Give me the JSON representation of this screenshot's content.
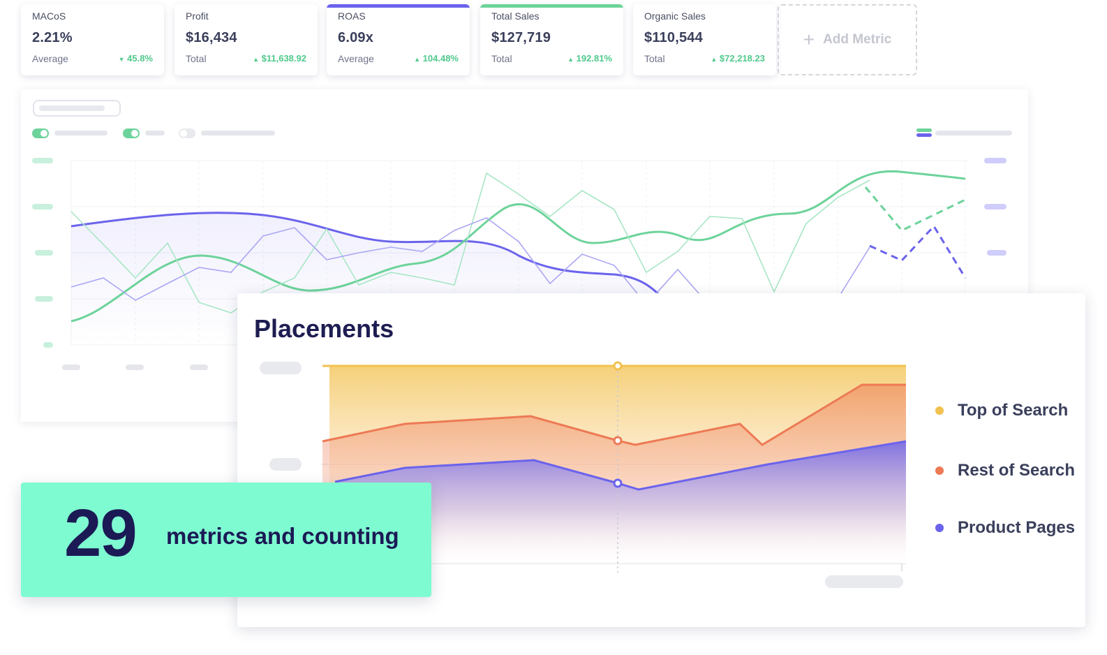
{
  "metrics": [
    {
      "label": "MACoS",
      "value": "2.21%",
      "sub": "Average",
      "delta": "45.8%",
      "direction": "down",
      "accent": ""
    },
    {
      "label": "Profit",
      "value": "$16,434",
      "sub": "Total",
      "delta": "$11,638.92",
      "direction": "up",
      "accent": ""
    },
    {
      "label": "ROAS",
      "value": "6.09x",
      "sub": "Average",
      "delta": "104.48%",
      "direction": "up",
      "accent": "#6b63ec"
    },
    {
      "label": "Total Sales",
      "value": "$127,719",
      "sub": "Total",
      "delta": "192.81%",
      "direction": "up",
      "accent": "#6dd39a"
    },
    {
      "label": "Organic Sales",
      "value": "$110,544",
      "sub": "Total",
      "delta": "$72,218.23",
      "direction": "up",
      "accent": ""
    }
  ],
  "add_metric": {
    "label": "Add Metric",
    "icon": "plus-icon"
  },
  "placements": {
    "title": "Placements",
    "legend": [
      {
        "name": "Top of Search",
        "color": "#f2c14e"
      },
      {
        "name": "Rest of Search",
        "color": "#ed7a55"
      },
      {
        "name": "Product Pages",
        "color": "#6b63ec"
      }
    ]
  },
  "promo": {
    "number": "29",
    "text": "metrics and counting"
  },
  "colors": {
    "green": "#6dd39a",
    "purple": "#6b63ec",
    "orange": "#ed7a55",
    "yellow": "#f2c14e",
    "mint": "#7ffbd1",
    "navy": "#1b1a55"
  }
}
